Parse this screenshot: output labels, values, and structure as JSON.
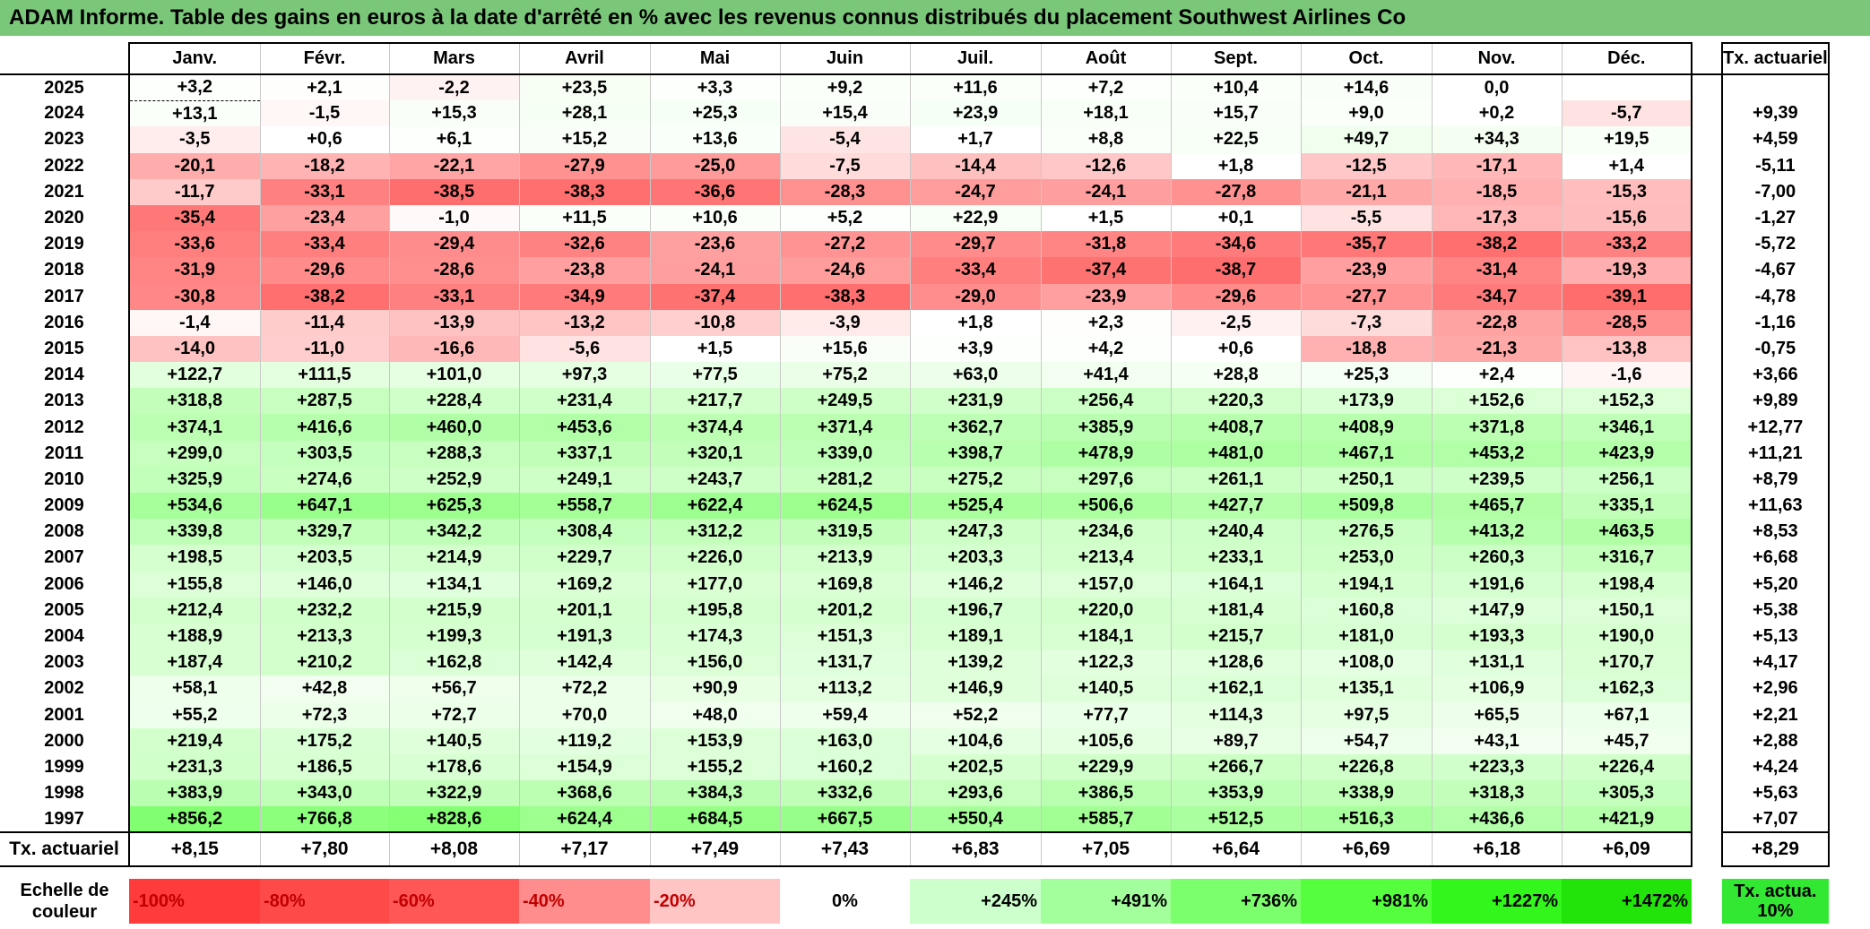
{
  "title": "ADAM Informe. Table des gains en euros à la date d'arrêté en % avec les revenus connus distribués du placement Southwest Airlines Co",
  "months": [
    "Janv.",
    "Févr.",
    "Mars",
    "Avril",
    "Mai",
    "Juin",
    "Juil.",
    "Août",
    "Sept.",
    "Oct.",
    "Nov.",
    "Déc."
  ],
  "tx_header": "Tx. actuariel",
  "rows": [
    {
      "year": "2025",
      "values": [
        "+3,2",
        "+2,1",
        "-2,2",
        "+23,5",
        "+3,3",
        "+9,2",
        "+11,6",
        "+7,2",
        "+10,4",
        "+14,6",
        "0,0",
        ""
      ],
      "tx": ""
    },
    {
      "year": "2024",
      "values": [
        "+13,1",
        "-1,5",
        "+15,3",
        "+28,1",
        "+25,3",
        "+15,4",
        "+23,9",
        "+18,1",
        "+15,7",
        "+9,0",
        "+0,2",
        "-5,7"
      ],
      "tx": "+9,39"
    },
    {
      "year": "2023",
      "values": [
        "-3,5",
        "+0,6",
        "+6,1",
        "+15,2",
        "+13,6",
        "-5,4",
        "+1,7",
        "+8,8",
        "+22,5",
        "+49,7",
        "+34,3",
        "+19,5"
      ],
      "tx": "+4,59"
    },
    {
      "year": "2022",
      "values": [
        "-20,1",
        "-18,2",
        "-22,1",
        "-27,9",
        "-25,0",
        "-7,5",
        "-14,4",
        "-12,6",
        "+1,8",
        "-12,5",
        "-17,1",
        "+1,4"
      ],
      "tx": "-5,11"
    },
    {
      "year": "2021",
      "values": [
        "-11,7",
        "-33,1",
        "-38,5",
        "-38,3",
        "-36,6",
        "-28,3",
        "-24,7",
        "-24,1",
        "-27,8",
        "-21,1",
        "-18,5",
        "-15,3"
      ],
      "tx": "-7,00"
    },
    {
      "year": "2020",
      "values": [
        "-35,4",
        "-23,4",
        "-1,0",
        "+11,5",
        "+10,6",
        "+5,2",
        "+22,9",
        "+1,5",
        "+0,1",
        "-5,5",
        "-17,3",
        "-15,6"
      ],
      "tx": "-1,27"
    },
    {
      "year": "2019",
      "values": [
        "-33,6",
        "-33,4",
        "-29,4",
        "-32,6",
        "-23,6",
        "-27,2",
        "-29,7",
        "-31,8",
        "-34,6",
        "-35,7",
        "-38,2",
        "-33,2"
      ],
      "tx": "-5,72"
    },
    {
      "year": "2018",
      "values": [
        "-31,9",
        "-29,6",
        "-28,6",
        "-23,8",
        "-24,1",
        "-24,6",
        "-33,4",
        "-37,4",
        "-38,7",
        "-23,9",
        "-31,4",
        "-19,3"
      ],
      "tx": "-4,67"
    },
    {
      "year": "2017",
      "values": [
        "-30,8",
        "-38,2",
        "-33,1",
        "-34,9",
        "-37,4",
        "-38,3",
        "-29,0",
        "-23,9",
        "-29,6",
        "-27,7",
        "-34,7",
        "-39,1"
      ],
      "tx": "-4,78"
    },
    {
      "year": "2016",
      "values": [
        "-1,4",
        "-11,4",
        "-13,9",
        "-13,2",
        "-10,8",
        "-3,9",
        "+1,8",
        "+2,3",
        "-2,5",
        "-7,3",
        "-22,8",
        "-28,5"
      ],
      "tx": "-1,16"
    },
    {
      "year": "2015",
      "values": [
        "-14,0",
        "-11,0",
        "-16,6",
        "-5,6",
        "+1,5",
        "+15,6",
        "+3,9",
        "+4,2",
        "+0,6",
        "-18,8",
        "-21,3",
        "-13,8"
      ],
      "tx": "-0,75"
    },
    {
      "year": "2014",
      "values": [
        "+122,7",
        "+111,5",
        "+101,0",
        "+97,3",
        "+77,5",
        "+75,2",
        "+63,0",
        "+41,4",
        "+28,8",
        "+25,3",
        "+2,4",
        "-1,6"
      ],
      "tx": "+3,66"
    },
    {
      "year": "2013",
      "values": [
        "+318,8",
        "+287,5",
        "+228,4",
        "+231,4",
        "+217,7",
        "+249,5",
        "+231,9",
        "+256,4",
        "+220,3",
        "+173,9",
        "+152,6",
        "+152,3"
      ],
      "tx": "+9,89"
    },
    {
      "year": "2012",
      "values": [
        "+374,1",
        "+416,6",
        "+460,0",
        "+453,6",
        "+374,4",
        "+371,4",
        "+362,7",
        "+385,9",
        "+408,7",
        "+408,9",
        "+371,8",
        "+346,1"
      ],
      "tx": "+12,77"
    },
    {
      "year": "2011",
      "values": [
        "+299,0",
        "+303,5",
        "+288,3",
        "+337,1",
        "+320,1",
        "+339,0",
        "+398,7",
        "+478,9",
        "+481,0",
        "+467,1",
        "+453,2",
        "+423,9"
      ],
      "tx": "+11,21"
    },
    {
      "year": "2010",
      "values": [
        "+325,9",
        "+274,6",
        "+252,9",
        "+249,1",
        "+243,7",
        "+281,2",
        "+275,2",
        "+297,6",
        "+261,1",
        "+250,1",
        "+239,5",
        "+256,1"
      ],
      "tx": "+8,79"
    },
    {
      "year": "2009",
      "values": [
        "+534,6",
        "+647,1",
        "+625,3",
        "+558,7",
        "+622,4",
        "+624,5",
        "+525,4",
        "+506,6",
        "+427,7",
        "+509,8",
        "+465,7",
        "+335,1"
      ],
      "tx": "+11,63"
    },
    {
      "year": "2008",
      "values": [
        "+339,8",
        "+329,7",
        "+342,2",
        "+308,4",
        "+312,2",
        "+319,5",
        "+247,3",
        "+234,6",
        "+240,4",
        "+276,5",
        "+413,2",
        "+463,5"
      ],
      "tx": "+8,53"
    },
    {
      "year": "2007",
      "values": [
        "+198,5",
        "+203,5",
        "+214,9",
        "+229,7",
        "+226,0",
        "+213,9",
        "+203,3",
        "+213,4",
        "+233,1",
        "+253,0",
        "+260,3",
        "+316,7"
      ],
      "tx": "+6,68"
    },
    {
      "year": "2006",
      "values": [
        "+155,8",
        "+146,0",
        "+134,1",
        "+169,2",
        "+177,0",
        "+169,8",
        "+146,2",
        "+157,0",
        "+164,1",
        "+194,1",
        "+191,6",
        "+198,4"
      ],
      "tx": "+5,20"
    },
    {
      "year": "2005",
      "values": [
        "+212,4",
        "+232,2",
        "+215,9",
        "+201,1",
        "+195,8",
        "+201,2",
        "+196,7",
        "+220,0",
        "+181,4",
        "+160,8",
        "+147,9",
        "+150,1"
      ],
      "tx": "+5,38"
    },
    {
      "year": "2004",
      "values": [
        "+188,9",
        "+213,3",
        "+199,3",
        "+191,3",
        "+174,3",
        "+151,3",
        "+189,1",
        "+184,1",
        "+215,7",
        "+181,0",
        "+193,3",
        "+190,0"
      ],
      "tx": "+5,13"
    },
    {
      "year": "2003",
      "values": [
        "+187,4",
        "+210,2",
        "+162,8",
        "+142,4",
        "+156,0",
        "+131,7",
        "+139,2",
        "+122,3",
        "+128,6",
        "+108,0",
        "+131,1",
        "+170,7"
      ],
      "tx": "+4,17"
    },
    {
      "year": "2002",
      "values": [
        "+58,1",
        "+42,8",
        "+56,7",
        "+72,2",
        "+90,9",
        "+113,2",
        "+146,9",
        "+140,5",
        "+162,1",
        "+135,1",
        "+106,9",
        "+162,3"
      ],
      "tx": "+2,96"
    },
    {
      "year": "2001",
      "values": [
        "+55,2",
        "+72,3",
        "+72,7",
        "+70,0",
        "+48,0",
        "+59,4",
        "+52,2",
        "+77,7",
        "+114,3",
        "+97,5",
        "+65,5",
        "+67,1"
      ],
      "tx": "+2,21"
    },
    {
      "year": "2000",
      "values": [
        "+219,4",
        "+175,2",
        "+140,5",
        "+119,2",
        "+153,9",
        "+163,0",
        "+104,6",
        "+105,6",
        "+89,7",
        "+54,7",
        "+43,1",
        "+45,7"
      ],
      "tx": "+2,88"
    },
    {
      "year": "1999",
      "values": [
        "+231,3",
        "+186,5",
        "+178,6",
        "+154,9",
        "+155,2",
        "+160,2",
        "+202,5",
        "+229,9",
        "+266,7",
        "+226,8",
        "+223,3",
        "+226,4"
      ],
      "tx": "+4,24"
    },
    {
      "year": "1998",
      "values": [
        "+383,9",
        "+343,0",
        "+322,9",
        "+368,6",
        "+384,3",
        "+332,6",
        "+293,6",
        "+386,5",
        "+353,9",
        "+338,9",
        "+318,3",
        "+305,3"
      ],
      "tx": "+5,63"
    },
    {
      "year": "1997",
      "values": [
        "+856,2",
        "+766,8",
        "+828,6",
        "+624,4",
        "+684,5",
        "+667,5",
        "+550,4",
        "+585,7",
        "+512,5",
        "+516,3",
        "+436,6",
        "+421,9"
      ],
      "tx": "+7,07"
    }
  ],
  "total_row": {
    "label": "Tx. actuariel",
    "values": [
      "+8,15",
      "+7,80",
      "+8,08",
      "+7,17",
      "+7,49",
      "+7,43",
      "+6,83",
      "+7,05",
      "+6,64",
      "+6,69",
      "+6,18",
      "+6,09"
    ],
    "tx": "+8,29"
  },
  "scale": {
    "label": "Echelle de couleur",
    "items": [
      {
        "text": "-100%",
        "color": "#ff3b3b"
      },
      {
        "text": "-80%",
        "color": "#ff4a4a"
      },
      {
        "text": "-60%",
        "color": "#ff5656"
      },
      {
        "text": "-40%",
        "color": "#ff8d8d"
      },
      {
        "text": "-20%",
        "color": "#ffc4c4"
      },
      {
        "text": "0%",
        "color": "#ffffff"
      },
      {
        "text": "+245%",
        "color": "#ccffcc"
      },
      {
        "text": "+491%",
        "color": "#a3ff9c"
      },
      {
        "text": "+736%",
        "color": "#7cff6c"
      },
      {
        "text": "+981%",
        "color": "#55ff3e"
      },
      {
        "text": "+1227%",
        "color": "#33f61c"
      },
      {
        "text": "+1472%",
        "color": "#22e30a"
      }
    ],
    "tx_label": "Tx. actua. 10%",
    "tx_color": "#33e833"
  },
  "colors": {
    "title_bg": "#7ac77a",
    "neg_text": "#c00000"
  }
}
